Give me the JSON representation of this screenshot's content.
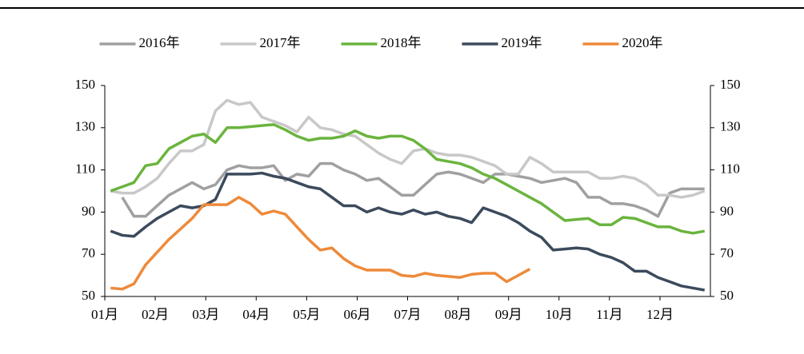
{
  "chart_data": {
    "type": "line",
    "x": [
      1,
      2,
      3,
      4,
      5,
      6,
      7,
      8,
      9,
      10,
      11,
      12,
      13,
      14,
      15,
      16,
      17,
      18,
      19,
      20,
      21,
      22,
      23,
      24,
      25,
      26,
      27,
      28,
      29,
      30,
      31,
      32,
      33,
      34,
      35,
      36,
      37,
      38,
      39,
      40,
      41,
      42,
      43,
      44,
      45,
      46,
      47,
      48,
      49,
      50,
      51,
      52
    ],
    "xlim": [
      0.5,
      52.5
    ],
    "xticks": [
      {
        "value": 0.5,
        "label": "01月"
      },
      {
        "value": 4.83,
        "label": "02月"
      },
      {
        "value": 9.17,
        "label": "03月"
      },
      {
        "value": 13.5,
        "label": "04月"
      },
      {
        "value": 17.83,
        "label": "05月"
      },
      {
        "value": 22.17,
        "label": "06月"
      },
      {
        "value": 26.5,
        "label": "07月"
      },
      {
        "value": 30.83,
        "label": "08月"
      },
      {
        "value": 35.17,
        "label": "09月"
      },
      {
        "value": 39.5,
        "label": "10月"
      },
      {
        "value": 43.83,
        "label": "11月"
      },
      {
        "value": 48.17,
        "label": "12月"
      }
    ],
    "ylim": [
      50,
      150
    ],
    "yticks": [
      50,
      70,
      90,
      110,
      130,
      150
    ],
    "legend": "top",
    "series": [
      {
        "name": "2016年",
        "color": "#a0a0a0",
        "values": [
          null,
          97,
          88,
          88,
          93,
          98,
          101,
          104,
          101,
          103,
          110,
          112,
          111,
          111,
          112,
          105,
          108,
          107,
          113,
          113,
          110,
          108,
          105,
          106,
          102,
          98,
          98,
          103,
          108,
          109,
          108,
          106,
          104,
          108,
          108,
          107,
          106,
          104,
          105,
          106,
          104,
          97,
          97,
          94,
          94,
          93,
          91,
          88,
          99,
          101,
          101,
          101
        ]
      },
      {
        "name": "2017年",
        "color": "#c8c8c8",
        "values": [
          100,
          99,
          99,
          102,
          106,
          113,
          119,
          119,
          122,
          138,
          143,
          141,
          142,
          135,
          133,
          131,
          128,
          135,
          130,
          129,
          127,
          126,
          122,
          118,
          115,
          113,
          119,
          120,
          118,
          117,
          117,
          116,
          114,
          112,
          108,
          108,
          116,
          113,
          109,
          109,
          109,
          109,
          106,
          106,
          107,
          106,
          103,
          98,
          98,
          97,
          98,
          100
        ]
      },
      {
        "name": "2018年",
        "color": "#6ab43e",
        "values": [
          100,
          102,
          104,
          112,
          113,
          120,
          123,
          126,
          127,
          123,
          130,
          130,
          130.5,
          131,
          131.5,
          129,
          126,
          124,
          125,
          125,
          126,
          128.5,
          126,
          125,
          126,
          126,
          124,
          120,
          115,
          114,
          113,
          111,
          108,
          106,
          103,
          100,
          97,
          94,
          90,
          86,
          86.5,
          87,
          84,
          84,
          87.5,
          87,
          85,
          83,
          83,
          81,
          80,
          81
        ]
      },
      {
        "name": "2019年",
        "color": "#3b4a5c",
        "values": [
          81,
          79,
          78.5,
          83,
          87,
          90,
          93,
          92,
          93,
          96,
          108,
          108,
          108,
          108.5,
          107,
          106,
          104,
          102,
          101,
          97,
          93,
          93,
          90,
          92,
          90,
          89,
          91,
          89,
          90,
          88,
          87,
          85,
          92,
          90,
          88,
          85,
          81,
          78,
          72,
          72.5,
          73,
          72.5,
          70,
          68.5,
          66,
          62,
          62,
          59,
          57,
          55,
          54,
          53
        ]
      },
      {
        "name": "2020年",
        "color": "#ee8a3a",
        "values": [
          54,
          53.5,
          56,
          65,
          71,
          77,
          82,
          87,
          93.5,
          93.5,
          93.5,
          97,
          94,
          89,
          90.5,
          89,
          83,
          77,
          72,
          73,
          68,
          64.5,
          62.5,
          62.5,
          62.5,
          60,
          59.5,
          61,
          60,
          59.5,
          59,
          60.5,
          61,
          61,
          57,
          60,
          63,
          null,
          null,
          null,
          null,
          null,
          null,
          null,
          null,
          null,
          null,
          null,
          null,
          null,
          null,
          null
        ]
      }
    ]
  }
}
